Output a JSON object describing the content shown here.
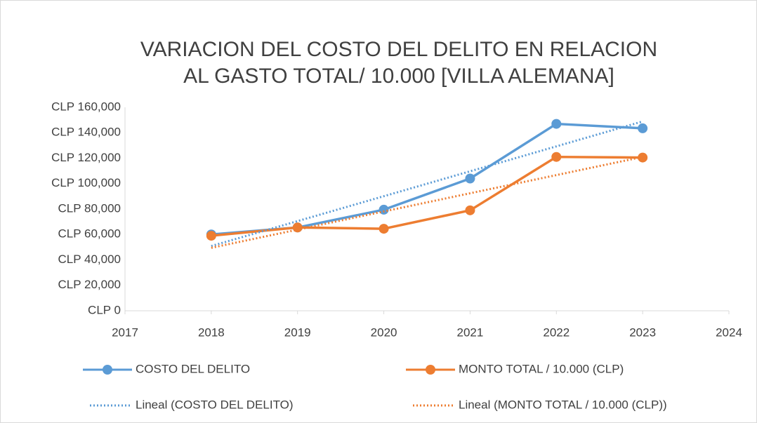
{
  "chart_data": {
    "type": "line",
    "title": [
      "VARIACION DEL COSTO DEL DELITO EN RELACION",
      "AL GASTO TOTAL/ 10.000  [VILLA ALEMANA]"
    ],
    "x": [
      2018,
      2019,
      2020,
      2021,
      2022,
      2023
    ],
    "series": [
      {
        "name": "COSTO DEL DELITO",
        "color": "#5b9bd5",
        "values": [
          60000,
          65500,
          79500,
          104000,
          147000,
          143500
        ]
      },
      {
        "name": "MONTO TOTAL / 10.000 (CLP)",
        "color": "#ed7d31",
        "values": [
          59000,
          65500,
          64500,
          79000,
          121000,
          120500
        ]
      },
      {
        "name": "Lineal (COSTO DEL DELITO)",
        "color": "#5b9bd5",
        "dash": "dotted",
        "x": [
          2018,
          2023
        ],
        "values": [
          50900,
          148900
        ]
      },
      {
        "name": "Lineal (MONTO TOTAL / 10.000 (CLP))",
        "color": "#ed7d31",
        "dash": "dotted",
        "x": [
          2018,
          2023
        ],
        "values": [
          49500,
          121000
        ]
      }
    ],
    "xlim": [
      2017,
      2024
    ],
    "xticks": [
      2017,
      2018,
      2019,
      2020,
      2021,
      2022,
      2023,
      2024
    ],
    "ylim": [
      0,
      160000
    ],
    "yticks": [
      {
        "value": 0,
        "label": "CLP 0"
      },
      {
        "value": 20000,
        "label": "CLP 20,000"
      },
      {
        "value": 40000,
        "label": "CLP 40,000"
      },
      {
        "value": 60000,
        "label": "CLP 60,000"
      },
      {
        "value": 80000,
        "label": "CLP 80,000"
      },
      {
        "value": 100000,
        "label": "CLP 100,000"
      },
      {
        "value": 120000,
        "label": "CLP 120,000"
      },
      {
        "value": 140000,
        "label": "CLP 140,000"
      },
      {
        "value": 160000,
        "label": "CLP 160,000"
      }
    ],
    "grid": false,
    "legend": "bottom"
  }
}
